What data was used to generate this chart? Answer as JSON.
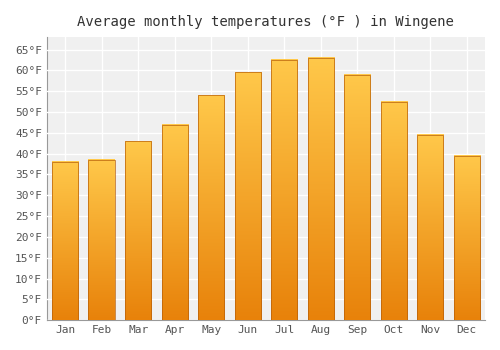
{
  "title": "Average monthly temperatures (°F ) in Wingene",
  "months": [
    "Jan",
    "Feb",
    "Mar",
    "Apr",
    "May",
    "Jun",
    "Jul",
    "Aug",
    "Sep",
    "Oct",
    "Nov",
    "Dec"
  ],
  "values": [
    38,
    38.5,
    43,
    47,
    54,
    59.5,
    62.5,
    63,
    59,
    52.5,
    44.5,
    39.5
  ],
  "bar_color_top": "#FFC84A",
  "bar_color_bottom": "#E8820A",
  "bar_edge_color": "#B8600A",
  "plot_bg_color": "#F0F0F0",
  "fig_bg_color": "#FFFFFF",
  "grid_color": "#FFFFFF",
  "ylim": [
    0,
    68
  ],
  "yticks": [
    0,
    5,
    10,
    15,
    20,
    25,
    30,
    35,
    40,
    45,
    50,
    55,
    60,
    65
  ],
  "title_fontsize": 10,
  "tick_fontsize": 8,
  "tick_color": "#555555",
  "title_color": "#333333"
}
